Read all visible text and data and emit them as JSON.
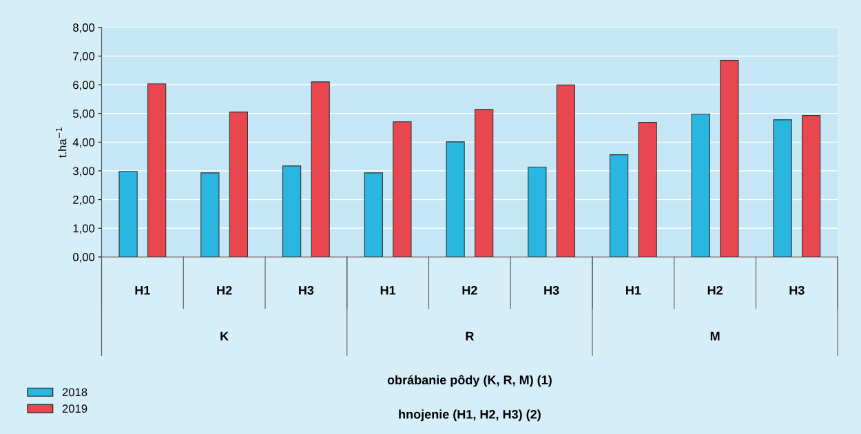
{
  "chart_data": {
    "type": "bar",
    "categories": [
      "H1",
      "H2",
      "H3",
      "H1",
      "H2",
      "H3",
      "H1",
      "H2",
      "H3"
    ],
    "series": [
      {
        "name": "2018",
        "color": "#29b6e0",
        "values": [
          2.98,
          2.93,
          3.17,
          2.93,
          4.01,
          3.13,
          3.56,
          4.98,
          4.78
        ]
      },
      {
        "name": "2019",
        "color": "#e8474f",
        "values": [
          6.03,
          5.05,
          6.1,
          4.71,
          5.14,
          5.99,
          4.69,
          6.85,
          4.93
        ]
      }
    ],
    "ylim": [
      0,
      8
    ],
    "yticks": [
      {
        "value": 0,
        "label": "0,00"
      },
      {
        "value": 1,
        "label": "1,00"
      },
      {
        "value": 2,
        "label": "2,00"
      },
      {
        "value": 3,
        "label": "3,00"
      },
      {
        "value": 4,
        "label": "4,00"
      },
      {
        "value": 5,
        "label": "5,00"
      },
      {
        "value": 6,
        "label": "6,00"
      },
      {
        "value": 7,
        "label": "7,00"
      },
      {
        "value": 8,
        "label": "8,00"
      }
    ],
    "ylabel": "t.ha$^{−1}$",
    "annotations": [
      "K",
      "R",
      "M",
      "obrábanie pôdy (K, R, M) (1)",
      "hnojenie (H1, H2, H3) (2)"
    ],
    "grid": "y",
    "legend": "bottom left"
  }
}
